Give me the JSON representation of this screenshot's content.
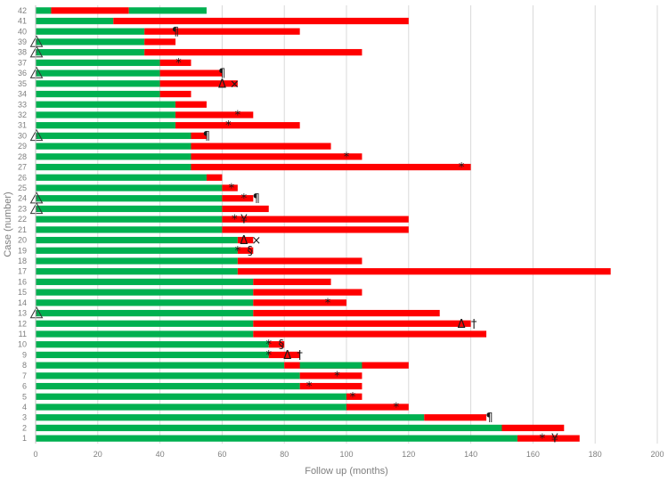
{
  "chart_data": {
    "type": "bar",
    "orientation": "horizontal",
    "stacked": true,
    "title": "",
    "xlabel": "Follow up (months)",
    "ylabel": "Case (number)",
    "xlim": [
      0,
      200
    ],
    "x_ticks": [
      "0",
      "20",
      "40",
      "60",
      "80",
      "100",
      "120",
      "140",
      "160",
      "180",
      "200"
    ],
    "grid": "vertical",
    "colors": {
      "green": "#00b050",
      "red": "#ff0000",
      "grid": "#d9d9d9",
      "axis": "#bfbfbf"
    },
    "categories": [
      "1",
      "2",
      "3",
      "4",
      "5",
      "6",
      "7",
      "8",
      "9",
      "10",
      "11",
      "12",
      "13",
      "14",
      "15",
      "16",
      "17",
      "18",
      "19",
      "20",
      "21",
      "22",
      "23",
      "24",
      "25",
      "26",
      "27",
      "28",
      "29",
      "30",
      "31",
      "32",
      "33",
      "34",
      "35",
      "36",
      "37",
      "38",
      "39",
      "40",
      "41",
      "42"
    ],
    "series": [
      {
        "color": "green",
        "values": [
          155,
          150,
          125,
          100,
          100,
          85,
          85,
          80,
          75,
          75,
          70,
          70,
          70,
          70,
          70,
          70,
          65,
          65,
          65,
          65,
          60,
          60,
          60,
          60,
          60,
          55,
          50,
          50,
          50,
          50,
          45,
          45,
          45,
          40,
          40,
          40,
          40,
          35,
          35,
          35,
          25,
          5
        ]
      },
      {
        "color": "red",
        "values": [
          20,
          20,
          20,
          20,
          5,
          20,
          20,
          40,
          10,
          5,
          75,
          70,
          60,
          30,
          35,
          25,
          120,
          40,
          5,
          5,
          60,
          60,
          15,
          10,
          5,
          5,
          90,
          55,
          45,
          5,
          40,
          25,
          10,
          10,
          25,
          20,
          10,
          70,
          10,
          50,
          95,
          25
        ]
      }
    ],
    "green_overlays": [
      {
        "case": "8",
        "from": 85,
        "to": 105
      },
      {
        "case": "42",
        "from": 30,
        "to": 55
      }
    ],
    "markers": [
      {
        "case": "1",
        "x": 163,
        "symbol": "*"
      },
      {
        "case": "1",
        "x": 167,
        "symbol": "¥"
      },
      {
        "case": "3",
        "x": 146,
        "symbol": "¶"
      },
      {
        "case": "4",
        "x": 116,
        "symbol": "*"
      },
      {
        "case": "5",
        "x": 102,
        "symbol": "*"
      },
      {
        "case": "6",
        "x": 88,
        "symbol": "*"
      },
      {
        "case": "7",
        "x": 97,
        "symbol": "*"
      },
      {
        "case": "9",
        "x": 75,
        "symbol": "*"
      },
      {
        "case": "9",
        "x": 81,
        "symbol": "Δ"
      },
      {
        "case": "9",
        "x": 85,
        "symbol": "†"
      },
      {
        "case": "10",
        "x": 75,
        "symbol": "*"
      },
      {
        "case": "10",
        "x": 79,
        "symbol": "§"
      },
      {
        "case": "12",
        "x": 137,
        "symbol": "Δ"
      },
      {
        "case": "12",
        "x": 141,
        "symbol": "†"
      },
      {
        "case": "13",
        "x": 0,
        "symbol": "triangle"
      },
      {
        "case": "14",
        "x": 94,
        "symbol": "*"
      },
      {
        "case": "19",
        "x": 65,
        "symbol": "*"
      },
      {
        "case": "19",
        "x": 69,
        "symbol": "§"
      },
      {
        "case": "20",
        "x": 67,
        "symbol": "Δ"
      },
      {
        "case": "20",
        "x": 71,
        "symbol": "×"
      },
      {
        "case": "22",
        "x": 64,
        "symbol": "*"
      },
      {
        "case": "22",
        "x": 67,
        "symbol": "¥"
      },
      {
        "case": "23",
        "x": 0,
        "symbol": "triangle"
      },
      {
        "case": "24",
        "x": 0,
        "symbol": "triangle"
      },
      {
        "case": "24",
        "x": 67,
        "symbol": "*"
      },
      {
        "case": "24",
        "x": 71,
        "symbol": "¶"
      },
      {
        "case": "25",
        "x": 63,
        "symbol": "*"
      },
      {
        "case": "27",
        "x": 137,
        "symbol": "*"
      },
      {
        "case": "28",
        "x": 100,
        "symbol": "*"
      },
      {
        "case": "30",
        "x": 0,
        "symbol": "triangle"
      },
      {
        "case": "30",
        "x": 55,
        "symbol": "¶"
      },
      {
        "case": "31",
        "x": 62,
        "symbol": "*"
      },
      {
        "case": "32",
        "x": 65,
        "symbol": "*"
      },
      {
        "case": "35",
        "x": 60,
        "symbol": "Δ"
      },
      {
        "case": "35",
        "x": 64,
        "symbol": "×"
      },
      {
        "case": "36",
        "x": 0,
        "symbol": "triangle"
      },
      {
        "case": "36",
        "x": 60,
        "symbol": "¶"
      },
      {
        "case": "37",
        "x": 46,
        "symbol": "*"
      },
      {
        "case": "38",
        "x": 0,
        "symbol": "triangle"
      },
      {
        "case": "39",
        "x": 0,
        "symbol": "triangle"
      },
      {
        "case": "40",
        "x": 45,
        "symbol": "¶"
      }
    ]
  }
}
